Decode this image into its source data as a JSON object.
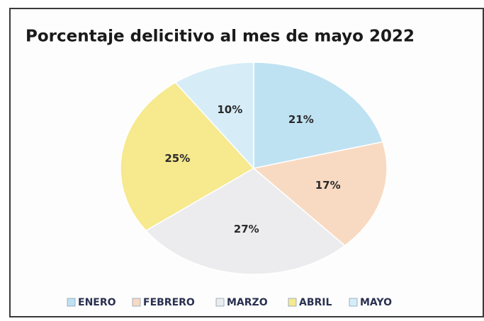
{
  "chart_data": {
    "type": "pie",
    "title": "Porcentaje delicitivo al mes de mayo 2022",
    "categories": [
      "ENERO",
      "FEBRERO",
      "MARZO",
      "ABRIL",
      "MAYO"
    ],
    "values": [
      21,
      17,
      27,
      25,
      10
    ],
    "value_labels": [
      "21%",
      "17%",
      "27%",
      "25%",
      "10%"
    ],
    "colors": [
      "#bfe2f2",
      "#f8dac2",
      "#ececef",
      "#f6e98e",
      "#d6edf7"
    ],
    "legend": "bottom"
  }
}
